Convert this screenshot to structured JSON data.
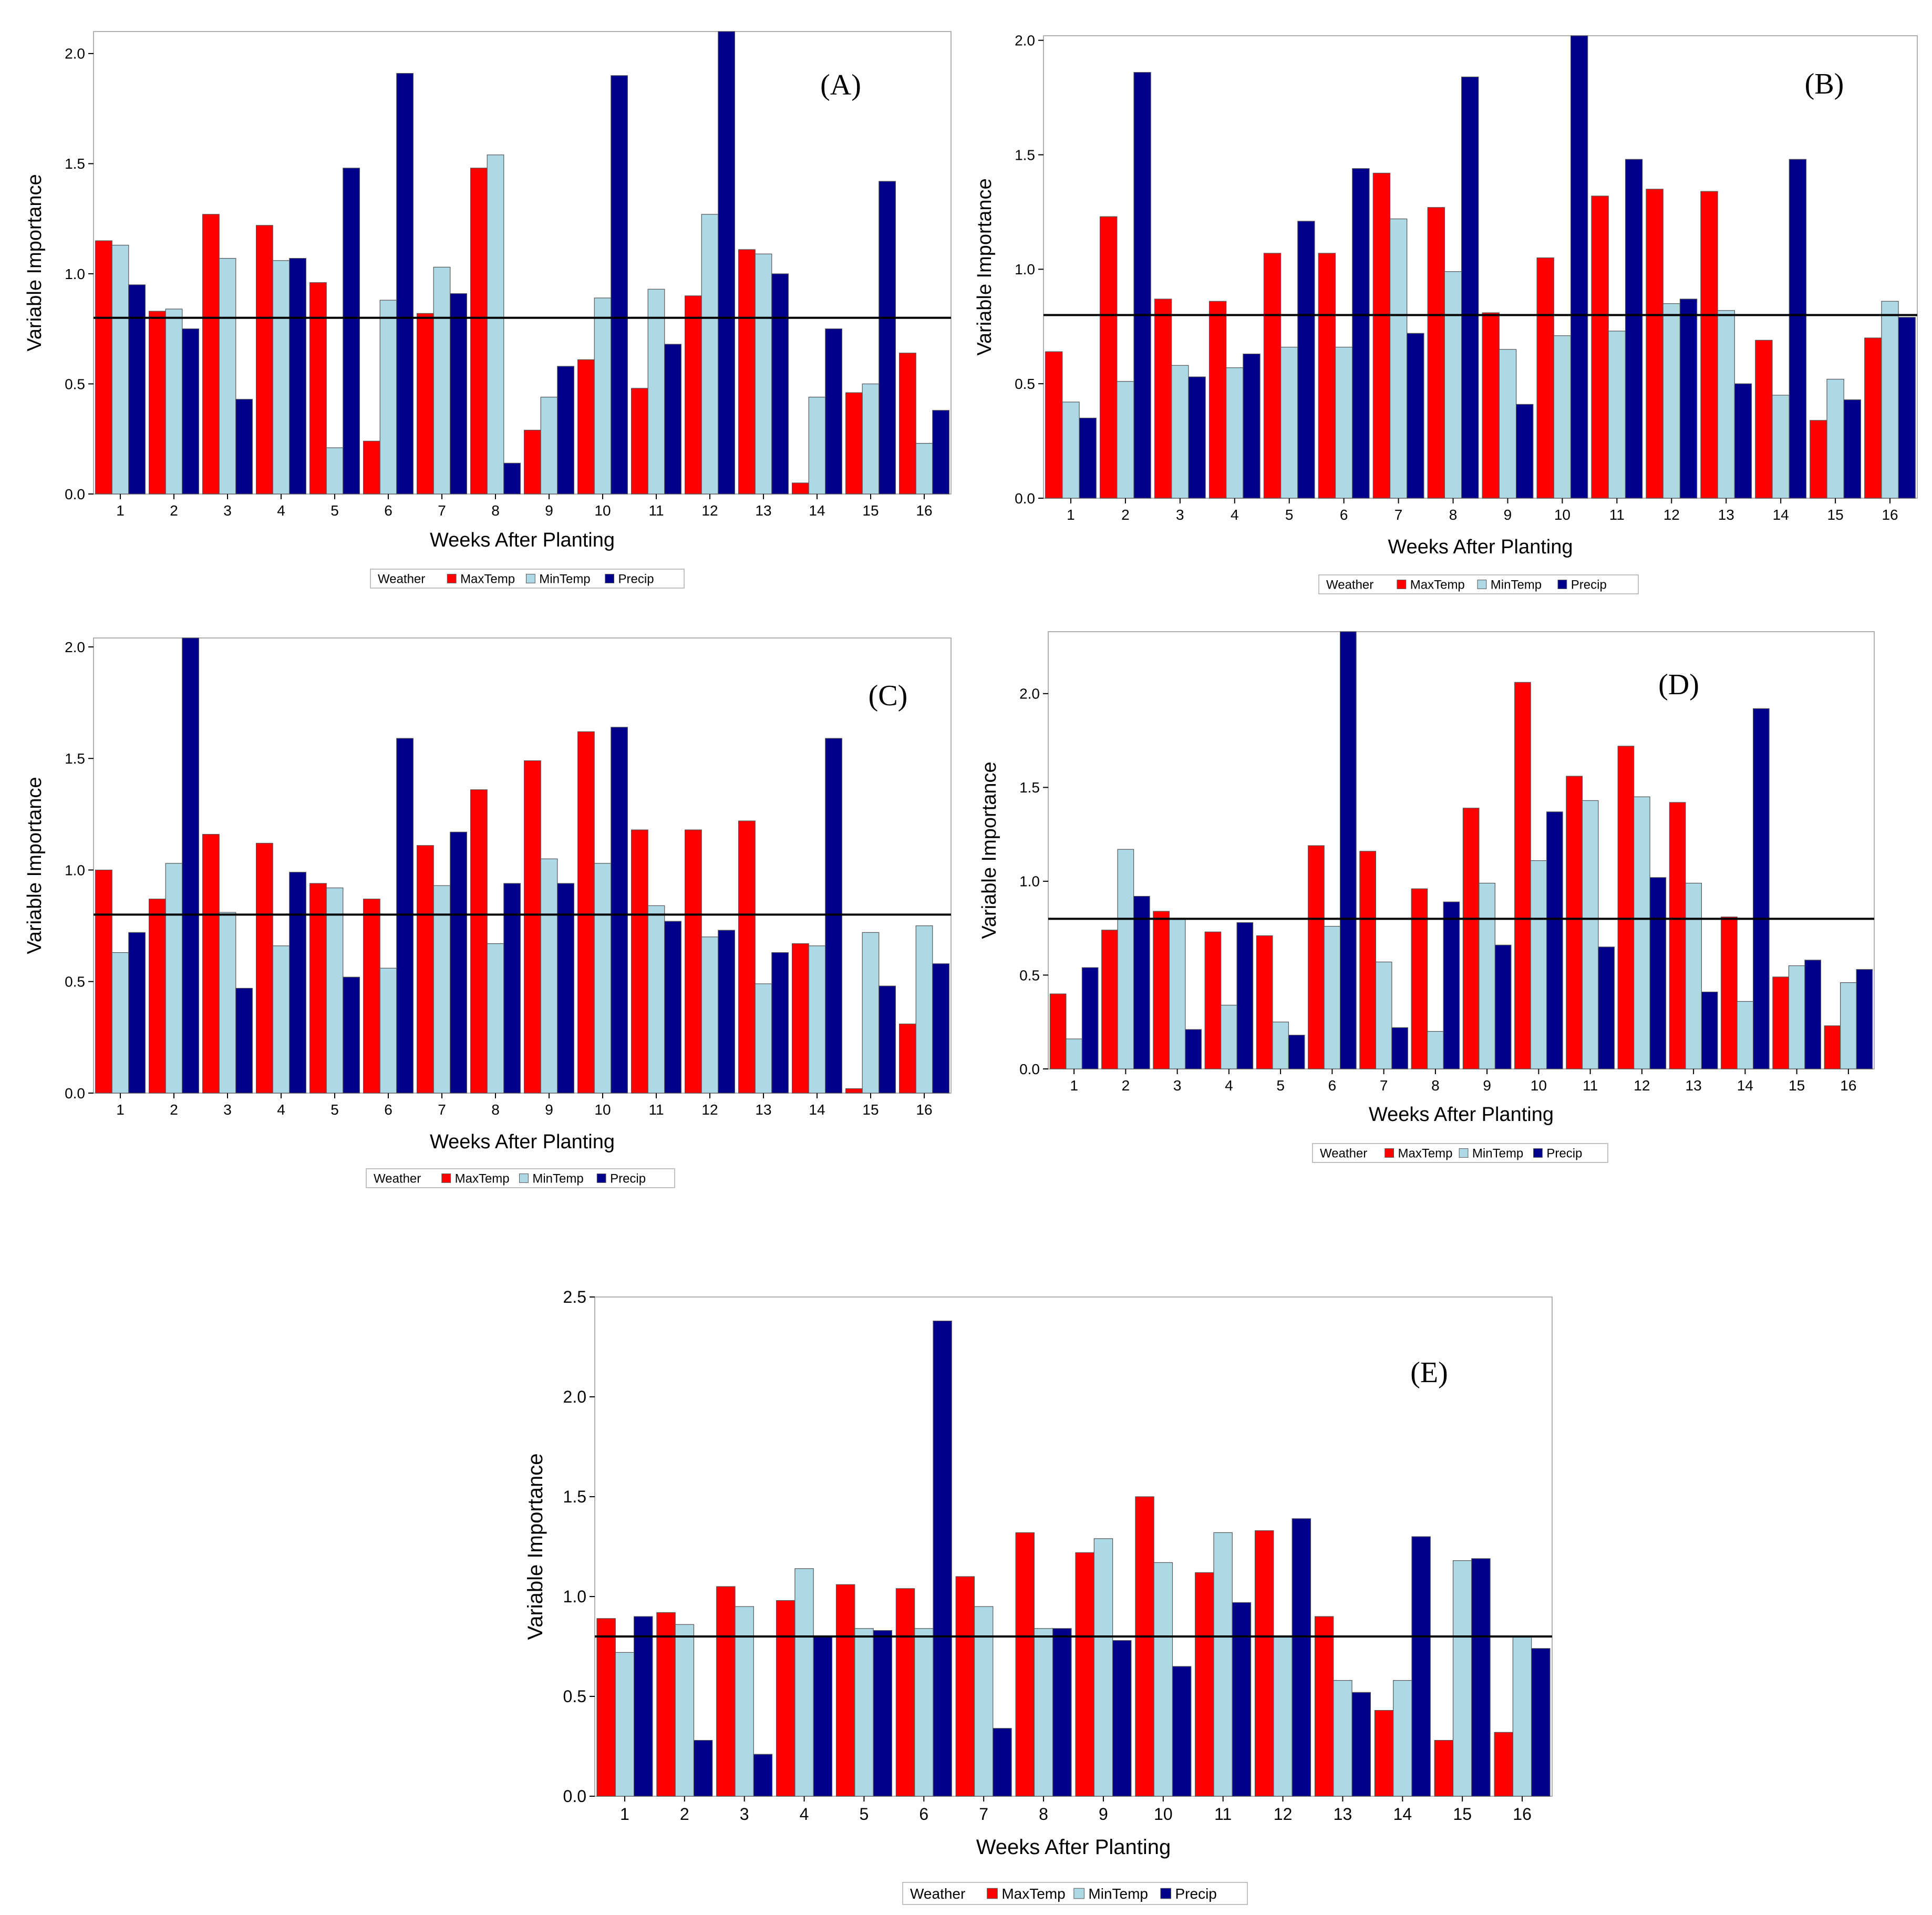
{
  "legend": {
    "title": "Weather",
    "entries": [
      "MaxTemp",
      "MinTemp",
      "Precip"
    ]
  },
  "colors": {
    "MaxTemp": "#ff0000",
    "MinTemp": "#add8e6",
    "Precip": "#00008b"
  },
  "chart_data": [
    {
      "type": "bar",
      "panel_label": "(A)",
      "xlabel": "Weeks After Planting",
      "ylabel": "Variable Importance",
      "categories": [
        "1",
        "2",
        "3",
        "4",
        "5",
        "6",
        "7",
        "8",
        "9",
        "10",
        "11",
        "12",
        "13",
        "14",
        "15",
        "16"
      ],
      "ylim": [
        0,
        2.1
      ],
      "yticks": [
        "0.0",
        "0.5",
        "1.0",
        "1.5",
        "2.0"
      ],
      "reference_line": 0.8,
      "series": [
        {
          "name": "MaxTemp",
          "values": [
            1.15,
            0.83,
            1.27,
            1.22,
            0.96,
            0.24,
            0.82,
            1.48,
            0.29,
            0.61,
            0.48,
            0.9,
            1.11,
            0.05,
            0.46,
            0.64
          ]
        },
        {
          "name": "MinTemp",
          "values": [
            1.13,
            0.84,
            1.07,
            1.06,
            0.21,
            0.88,
            1.03,
            1.54,
            0.44,
            0.89,
            0.93,
            1.27,
            1.09,
            0.44,
            0.5,
            0.23
          ]
        },
        {
          "name": "Precip",
          "values": [
            0.95,
            0.75,
            0.43,
            1.07,
            1.48,
            1.91,
            0.91,
            0.14,
            0.58,
            1.9,
            0.68,
            2.1,
            1.0,
            0.75,
            1.42,
            0.38
          ]
        }
      ]
    },
    {
      "type": "bar",
      "panel_label": "(B)",
      "xlabel": "Weeks After Planting",
      "ylabel": "Variable Importance",
      "categories": [
        "1",
        "2",
        "3",
        "4",
        "5",
        "6",
        "7",
        "8",
        "9",
        "10",
        "11",
        "12",
        "13",
        "14",
        "15",
        "16"
      ],
      "ylim": [
        0,
        2.02
      ],
      "yticks": [
        "0.0",
        "0.5",
        "1.0",
        "1.5",
        "2.0"
      ],
      "reference_line": 0.8,
      "series": [
        {
          "name": "MaxTemp",
          "values": [
            0.64,
            1.23,
            0.87,
            0.86,
            1.07,
            1.07,
            1.42,
            1.27,
            0.81,
            1.05,
            1.32,
            1.35,
            1.34,
            0.69,
            0.34,
            0.7
          ]
        },
        {
          "name": "MinTemp",
          "values": [
            0.42,
            0.51,
            0.58,
            0.57,
            0.66,
            0.66,
            1.22,
            0.99,
            0.65,
            0.71,
            0.73,
            0.85,
            0.82,
            0.45,
            0.52,
            0.86
          ]
        },
        {
          "name": "Precip",
          "values": [
            0.35,
            1.86,
            0.53,
            0.63,
            1.21,
            1.44,
            0.72,
            1.84,
            0.41,
            2.02,
            1.48,
            0.87,
            0.5,
            1.48,
            0.43,
            0.79
          ]
        }
      ]
    },
    {
      "type": "bar",
      "panel_label": "(C)",
      "xlabel": "Weeks After Planting",
      "ylabel": "Variable Importance",
      "categories": [
        "1",
        "2",
        "3",
        "4",
        "5",
        "6",
        "7",
        "8",
        "9",
        "10",
        "11",
        "12",
        "13",
        "14",
        "15",
        "16"
      ],
      "ylim": [
        0,
        2.04
      ],
      "yticks": [
        "0.0",
        "0.5",
        "1.0",
        "1.5",
        "2.0"
      ],
      "reference_line": 0.8,
      "series": [
        {
          "name": "MaxTemp",
          "values": [
            1.0,
            0.87,
            1.16,
            1.12,
            0.94,
            0.87,
            1.11,
            1.36,
            1.49,
            1.62,
            1.18,
            1.18,
            1.22,
            0.67,
            0.02,
            0.31
          ]
        },
        {
          "name": "MinTemp",
          "values": [
            0.63,
            1.03,
            0.81,
            0.66,
            0.92,
            0.56,
            0.93,
            0.67,
            1.05,
            1.03,
            0.84,
            0.7,
            0.49,
            0.66,
            0.72,
            0.75
          ]
        },
        {
          "name": "Precip",
          "values": [
            0.72,
            2.04,
            0.47,
            0.99,
            0.52,
            1.59,
            1.17,
            0.94,
            0.94,
            1.64,
            0.77,
            0.73,
            0.63,
            1.59,
            0.48,
            0.58
          ]
        }
      ]
    },
    {
      "type": "bar",
      "panel_label": "(D)",
      "xlabel": "Weeks After Planting",
      "ylabel": "Variable Importance",
      "categories": [
        "1",
        "2",
        "3",
        "4",
        "5",
        "6",
        "7",
        "8",
        "9",
        "10",
        "11",
        "12",
        "13",
        "14",
        "15",
        "16"
      ],
      "ylim": [
        0,
        2.33
      ],
      "yticks": [
        "0.0",
        "0.5",
        "1.0",
        "1.5",
        "2.0"
      ],
      "reference_line": 0.8,
      "series": [
        {
          "name": "MaxTemp",
          "values": [
            0.4,
            0.74,
            0.84,
            0.73,
            0.71,
            1.19,
            1.16,
            0.96,
            1.39,
            2.06,
            1.56,
            1.72,
            1.42,
            0.81,
            0.49,
            0.23
          ]
        },
        {
          "name": "MinTemp",
          "values": [
            0.16,
            1.17,
            0.8,
            0.34,
            0.25,
            0.76,
            0.57,
            0.2,
            0.99,
            1.11,
            1.43,
            1.45,
            0.99,
            0.36,
            0.55,
            0.46
          ]
        },
        {
          "name": "Precip",
          "values": [
            0.54,
            0.92,
            0.21,
            0.78,
            0.18,
            2.33,
            0.22,
            0.89,
            0.66,
            1.37,
            0.65,
            1.02,
            0.41,
            1.92,
            0.58,
            0.53
          ]
        }
      ]
    },
    {
      "type": "bar",
      "panel_label": "(E)",
      "xlabel": "Weeks After Planting",
      "ylabel": "Variable Importance",
      "categories": [
        "1",
        "2",
        "3",
        "4",
        "5",
        "6",
        "7",
        "8",
        "9",
        "10",
        "11",
        "12",
        "13",
        "14",
        "15",
        "16"
      ],
      "ylim": [
        0,
        2.5
      ],
      "yticks": [
        "0.0",
        "0.5",
        "1.0",
        "1.5",
        "2.0",
        "2.5"
      ],
      "reference_line": 0.8,
      "series": [
        {
          "name": "MaxTemp",
          "values": [
            0.89,
            0.92,
            1.05,
            0.98,
            1.06,
            1.04,
            1.1,
            1.32,
            1.22,
            1.5,
            1.12,
            1.33,
            0.9,
            0.43,
            0.28,
            0.32
          ]
        },
        {
          "name": "MinTemp",
          "values": [
            0.72,
            0.86,
            0.95,
            1.14,
            0.84,
            0.84,
            0.95,
            0.84,
            1.29,
            1.17,
            1.32,
            0.8,
            0.58,
            0.58,
            1.18,
            0.8
          ]
        },
        {
          "name": "Precip",
          "values": [
            0.9,
            0.28,
            0.21,
            0.8,
            0.83,
            2.38,
            0.34,
            0.84,
            0.78,
            0.65,
            0.97,
            1.39,
            0.52,
            1.3,
            1.19,
            0.74
          ]
        }
      ]
    }
  ]
}
